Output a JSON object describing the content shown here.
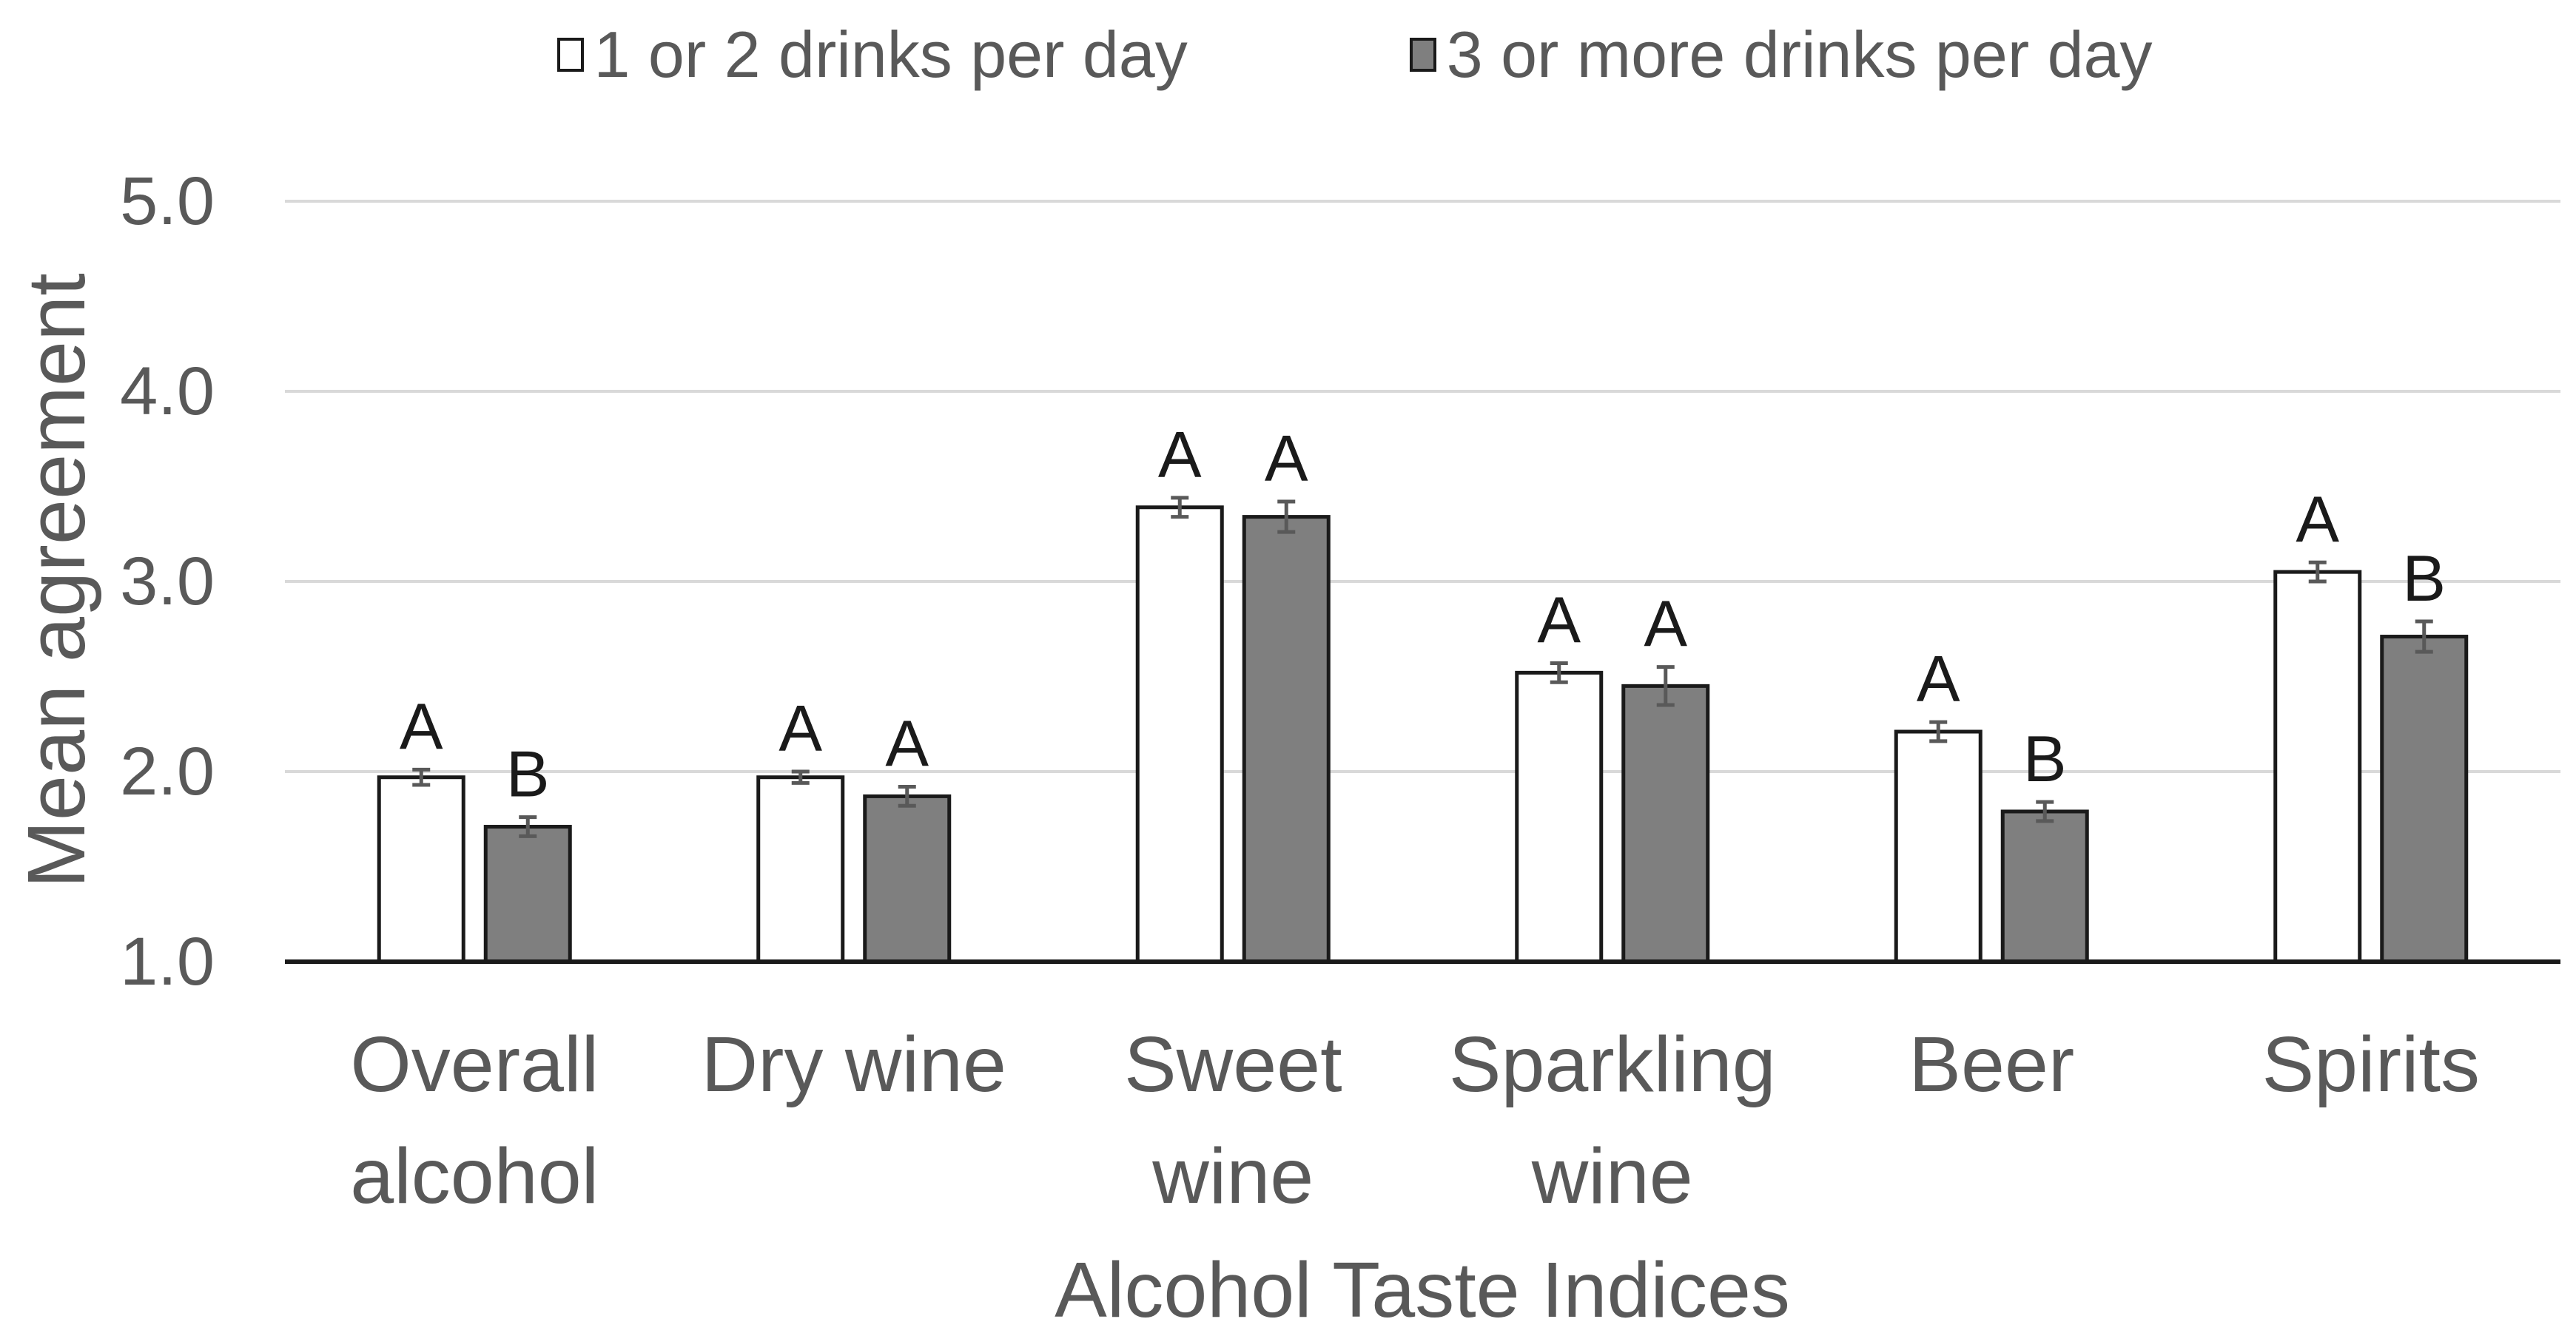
{
  "chart_data": {
    "type": "bar",
    "title": "",
    "xlabel": "Alcohol Taste Indices",
    "ylabel": "Mean agreement",
    "ylim": [
      1.0,
      5.0
    ],
    "y_ticks": [
      "1.0",
      "2.0",
      "3.0",
      "4.0",
      "5.0"
    ],
    "y_tick_values": [
      1.0,
      2.0,
      3.0,
      4.0,
      5.0
    ],
    "grid": true,
    "legend_position": "top",
    "categories": [
      {
        "line1": "Overall",
        "line2": "alcohol"
      },
      {
        "line1": "Dry wine",
        "line2": ""
      },
      {
        "line1": "Sweet",
        "line2": "wine"
      },
      {
        "line1": "Sparkling",
        "line2": "wine"
      },
      {
        "line1": "Beer",
        "line2": ""
      },
      {
        "line1": "Spirits",
        "line2": ""
      }
    ],
    "series": [
      {
        "name": "1 or 2 drinks per day",
        "color": "#ffffff",
        "values": [
          1.97,
          1.97,
          3.39,
          2.52,
          2.21,
          3.05
        ],
        "errors": [
          0.04,
          0.03,
          0.05,
          0.05,
          0.05,
          0.05
        ],
        "letters": [
          "A",
          "A",
          "A",
          "A",
          "A",
          "A"
        ]
      },
      {
        "name": "3 or more drinks per day",
        "color": "#7f7f7f",
        "values": [
          1.71,
          1.87,
          3.34,
          2.45,
          1.79,
          2.71
        ],
        "errors": [
          0.05,
          0.05,
          0.08,
          0.1,
          0.05,
          0.08
        ],
        "letters": [
          "B",
          "A",
          "A",
          "A",
          "B",
          "B"
        ]
      }
    ]
  },
  "legend": {
    "items": [
      {
        "label": "1 or 2 drinks per day",
        "color": "#ffffff"
      },
      {
        "label": "3 or more drinks per day",
        "color": "#7f7f7f"
      }
    ]
  }
}
